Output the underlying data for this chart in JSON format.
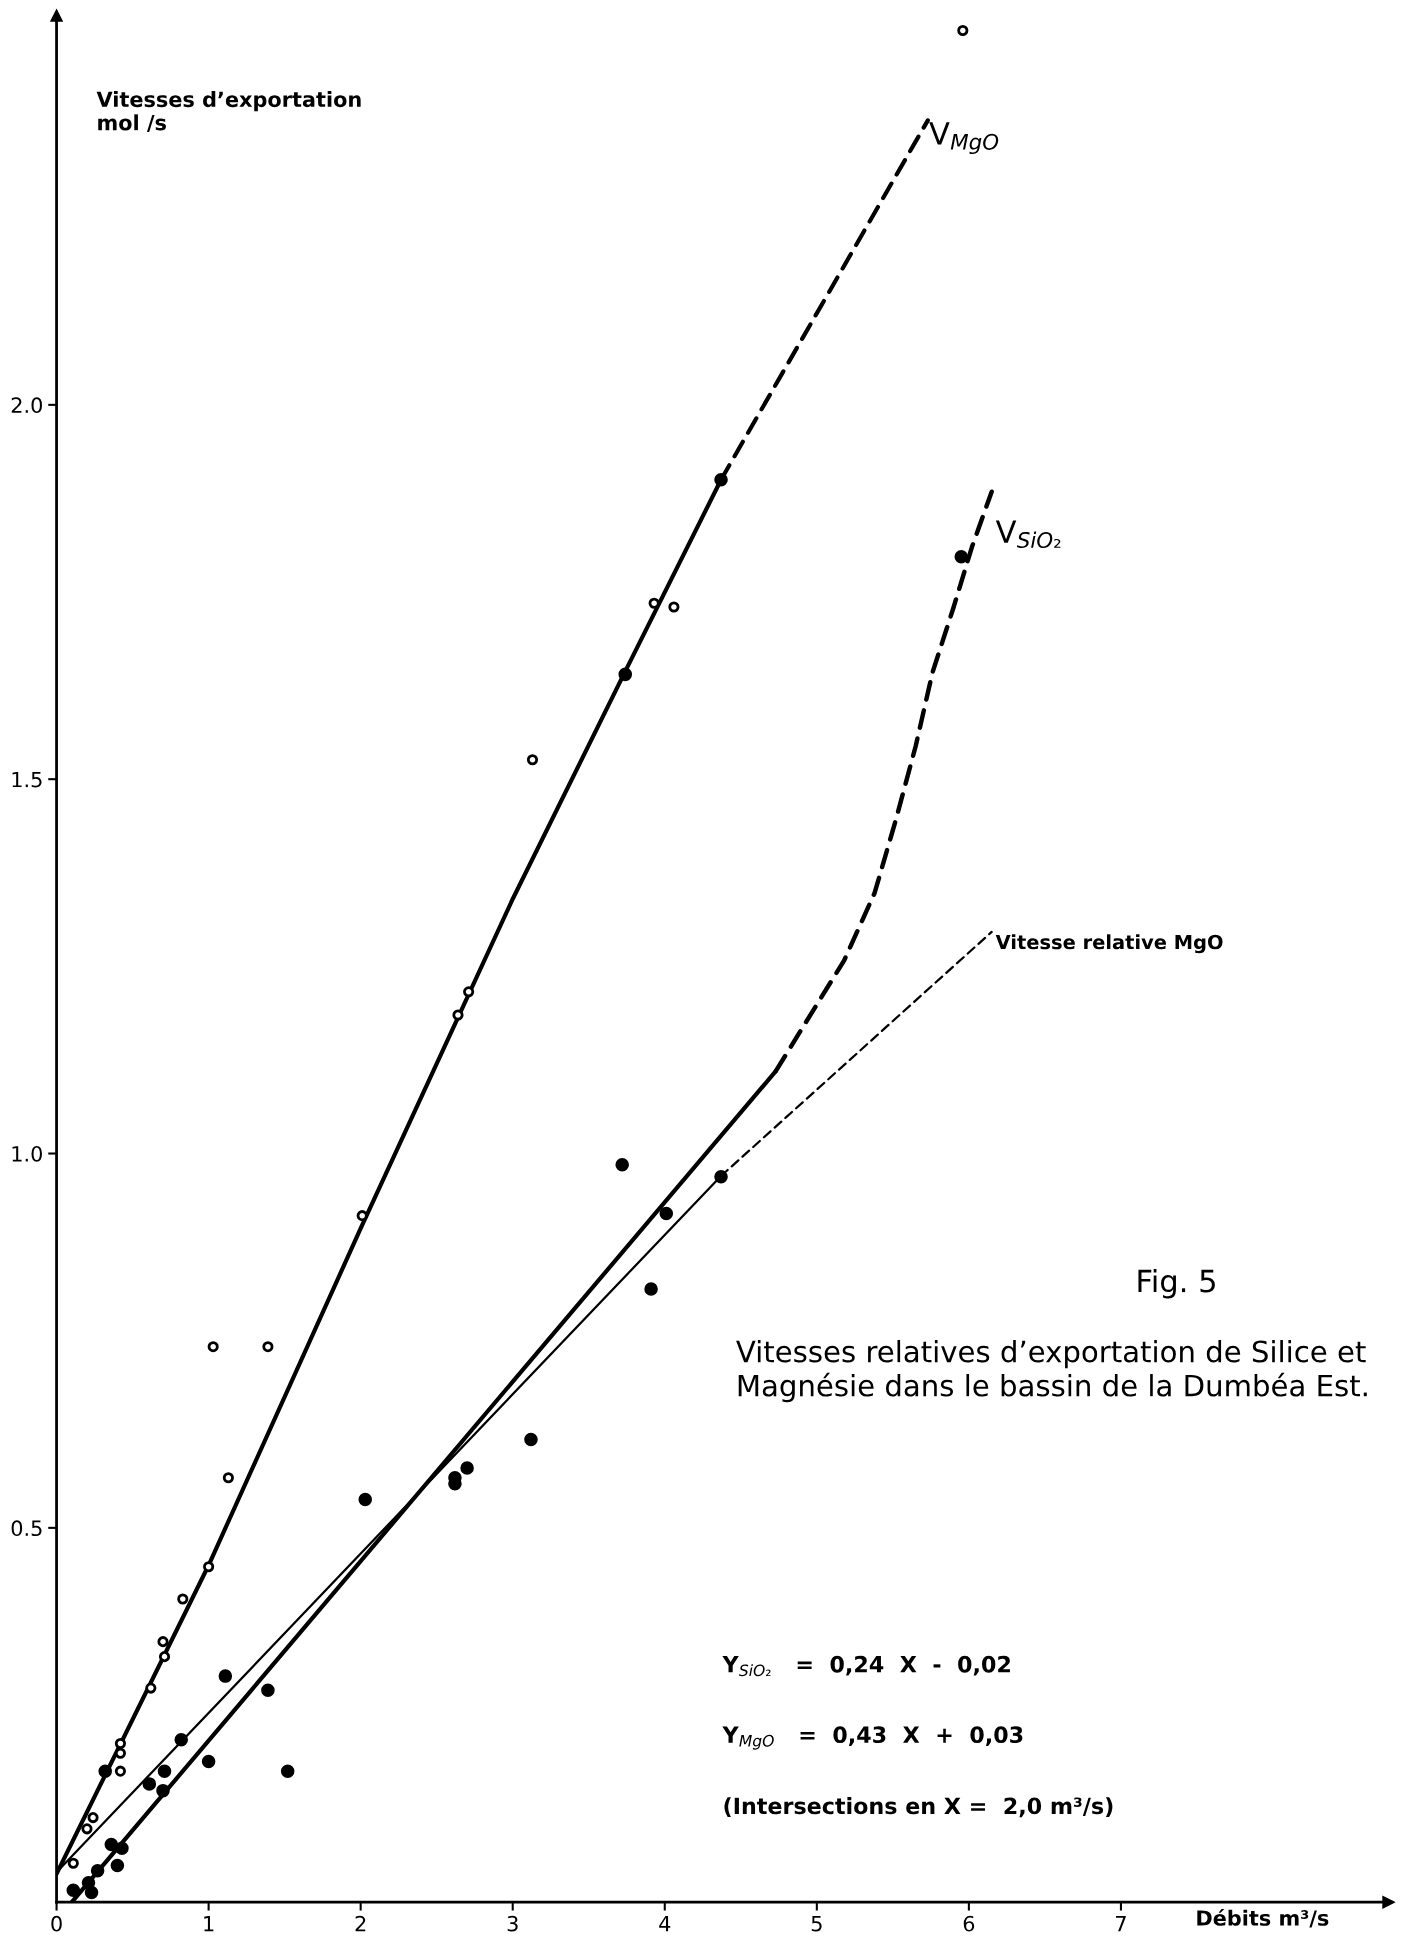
{
  "chart_data": {
    "type": "scatter",
    "title": "Fig. 5",
    "subtitle": "Vitesses relatives d’exportation de Silice et Magnésie dans le bassin de la Dumbéa Est.",
    "xlabel": "Débits m³/s",
    "ylabel": "Vitesses d’exportation\nmol /s",
    "xlim": [
      0,
      8.76
    ],
    "ylim": [
      0,
      2.52
    ],
    "xticks": [
      0,
      1,
      2,
      3,
      4,
      5,
      6,
      7
    ],
    "yticks": [
      {
        "value": 0.5,
        "label": "0.5"
      },
      {
        "value": 1.0,
        "label": "1.0"
      },
      {
        "value": 1.5,
        "label": "1.5"
      },
      {
        "value": 2.0,
        "label": "2.0"
      }
    ],
    "grid": false,
    "series": [
      {
        "marker": "circle",
        "color": "#000000",
        "x": [
          5.96,
          3.93,
          4.06,
          3.13,
          2.64,
          2.71,
          2.01,
          1.03,
          1.39,
          1.13,
          1.0,
          0.83,
          0.7,
          0.71,
          0.62,
          0.42,
          0.42,
          0.42,
          0.24,
          0.2,
          0.11
        ],
        "values": [
          2.5,
          1.735,
          1.73,
          1.526,
          1.185,
          1.216,
          0.917,
          0.742,
          0.742,
          0.567,
          0.448,
          0.405,
          0.348,
          0.328,
          0.286,
          0.212,
          0.199,
          0.175,
          0.113,
          0.098,
          0.052
        ]
      },
      {
        "marker": "circle",
        "color": "#000000",
        "x": [
          5.95,
          4.37,
          3.74,
          3.72,
          4.01,
          4.37,
          3.91,
          3.12,
          2.03,
          2.62,
          2.62,
          2.7,
          1.11,
          1.39,
          1.52,
          1.0,
          0.82,
          0.71,
          0.61,
          0.7,
          0.32,
          0.36,
          0.43,
          0.4,
          0.27,
          0.21,
          0.23,
          0.11
        ],
        "values": [
          1.797,
          1.9,
          1.64,
          0.985,
          0.92,
          0.969,
          0.819,
          0.618,
          0.538,
          0.567,
          0.559,
          0.58,
          0.302,
          0.283,
          0.175,
          0.188,
          0.217,
          0.175,
          0.158,
          0.149,
          0.175,
          0.077,
          0.072,
          0.049,
          0.042,
          0.026,
          0.013,
          0.016
        ]
      },
      {
        "type": "line",
        "line_style": "solid",
        "color": "#000000",
        "x": [
          0,
          1,
          2,
          3,
          3.73,
          4.37
        ],
        "values": [
          0.038,
          0.45,
          0.9,
          1.34,
          1.64,
          1.9
        ]
      },
      {
        "type": "line",
        "line_style": "dashed",
        "color": "#000000",
        "x": [
          4.37,
          5.73
        ],
        "values": [
          1.9,
          2.38
        ]
      },
      {
        "type": "line",
        "line_style": "solid",
        "color": "#000000",
        "x": [
          0.1,
          4.73
        ],
        "values": [
          0.0,
          1.11
        ]
      },
      {
        "type": "line",
        "line_style": "dashed",
        "color": "#000000",
        "x": [
          4.73,
          4.93,
          5.18,
          5.38,
          5.52,
          5.65,
          5.76,
          5.9,
          6.02,
          6.15
        ],
        "values": [
          1.11,
          1.176,
          1.258,
          1.348,
          1.446,
          1.544,
          1.642,
          1.73,
          1.81,
          1.884
        ]
      },
      {
        "type": "line",
        "line_style": "solid",
        "color": "#000000",
        "x": [
          0,
          4.37
        ],
        "values": [
          0.04,
          0.97
        ]
      },
      {
        "type": "line",
        "line_style": "dashed",
        "color": "#000000",
        "x": [
          4.37,
          6.15
        ],
        "values": [
          0.97,
          1.296
        ]
      }
    ],
    "annotations": [
      "V$_{MgO}$",
      "V$_{SiO₂}$",
      "Vitesse relative MgO",
      "Y$_{SiO₂}$   =  0,24  X  -  0,02",
      "Y$_{MgO}$   =  0,43  X  +  0,03",
      "(Intersections en X =  2,0 m³/s)"
    ]
  }
}
